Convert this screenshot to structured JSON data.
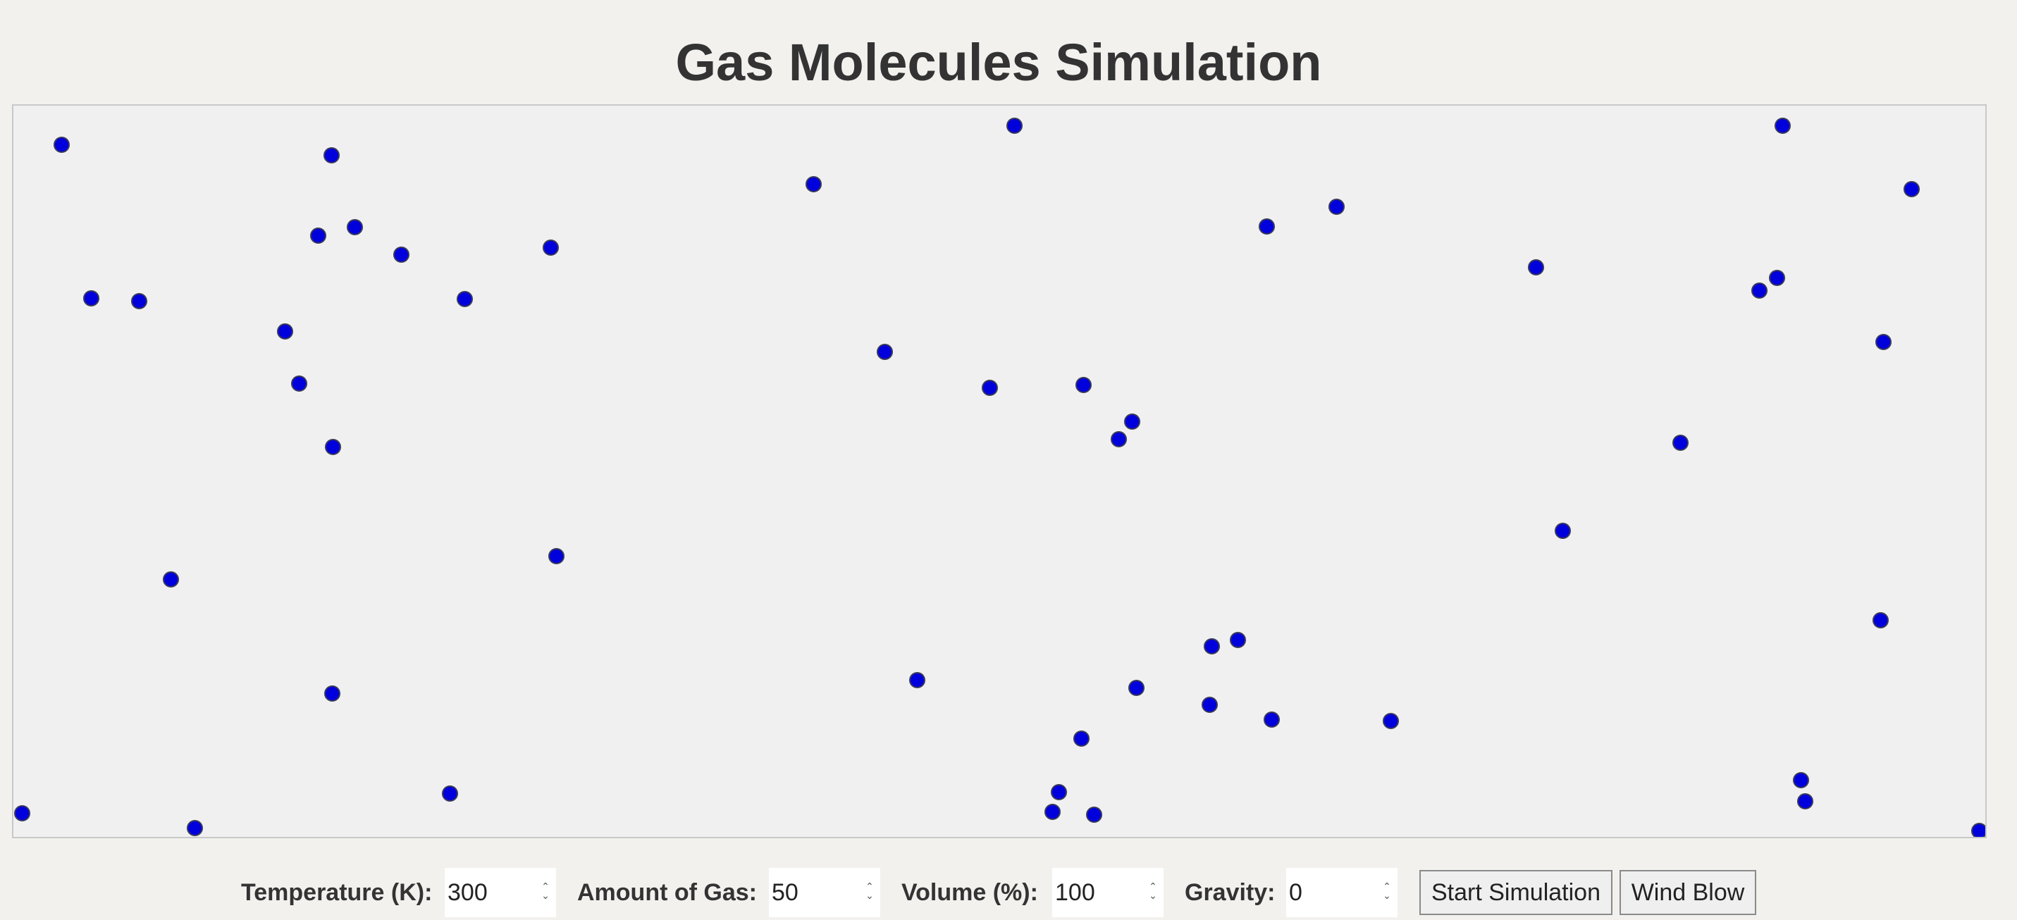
{
  "title": "Gas Molecules Simulation",
  "colors": {
    "molecule_fill": "#0000dd",
    "background": "#f2f1ee",
    "container": "#f0f0f1"
  },
  "controls": {
    "temperature": {
      "label": "Temperature (K):",
      "value": "300"
    },
    "amount": {
      "label": "Amount of Gas:",
      "value": "50"
    },
    "volume": {
      "label": "Volume (%):",
      "value": "100"
    },
    "gravity": {
      "label": "Gravity:",
      "value": "0"
    },
    "start_button": "Start Simulation",
    "wind_button": "Wind Blow"
  },
  "icons": {
    "spinner": "up-down-chevron-icon"
  }
}
